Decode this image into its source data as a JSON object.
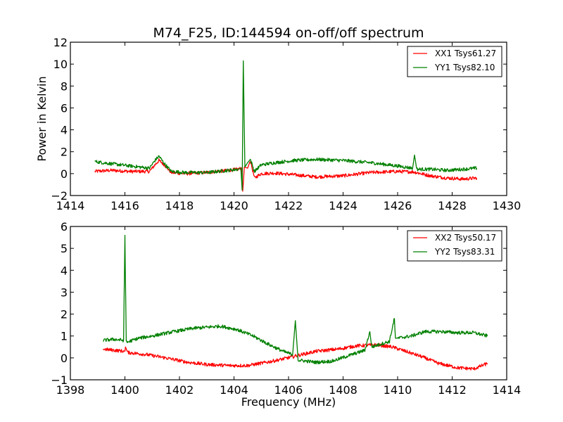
{
  "chart_data": [
    {
      "type": "line",
      "title": "M74_F25, ID:144594 on-off/off spectrum",
      "xlabel": "",
      "ylabel": "Power in Kelvin",
      "xlim": [
        1414,
        1430
      ],
      "ylim": [
        -2,
        12
      ],
      "xticks": [
        1414,
        1416,
        1418,
        1420,
        1422,
        1424,
        1426,
        1428,
        1430
      ],
      "yticks": [
        -2,
        0,
        2,
        4,
        6,
        8,
        10,
        12
      ],
      "grid": false,
      "legend_position": "top-right",
      "series": [
        {
          "name": "XX1 Tsys61.27",
          "color": "#ff0000",
          "x": [
            1414.9,
            1415.5,
            1416.2,
            1416.9,
            1417.1,
            1417.25,
            1417.45,
            1417.7,
            1418.2,
            1419.0,
            1419.8,
            1420.15,
            1420.28,
            1420.32,
            1420.38,
            1420.5,
            1420.6,
            1420.75,
            1421.0,
            1421.5,
            1422.2,
            1423.0,
            1424.0,
            1425.0,
            1426.0,
            1426.6,
            1427.2,
            1427.8,
            1428.4,
            1428.9
          ],
          "y": [
            0.2,
            0.3,
            0.2,
            0.2,
            0.8,
            1.2,
            0.8,
            0.1,
            0.0,
            0.1,
            0.3,
            0.4,
            0.5,
            -1.6,
            0.6,
            0.5,
            1.2,
            -0.4,
            0.0,
            0.05,
            -0.1,
            -0.3,
            -0.2,
            0.1,
            0.2,
            0.15,
            -0.2,
            -0.4,
            -0.5,
            -0.4
          ]
        },
        {
          "name": "YY1 Tsys82.10",
          "color": "#008000",
          "x": [
            1414.9,
            1415.5,
            1416.2,
            1416.9,
            1417.1,
            1417.25,
            1417.45,
            1417.7,
            1418.2,
            1419.0,
            1419.8,
            1420.15,
            1420.25,
            1420.3,
            1420.34,
            1420.4,
            1420.5,
            1420.6,
            1420.75,
            1421.0,
            1421.5,
            1422.2,
            1423.0,
            1424.0,
            1425.0,
            1426.0,
            1426.55,
            1426.62,
            1426.7,
            1427.2,
            1427.8,
            1428.4,
            1428.9
          ],
          "y": [
            1.1,
            0.9,
            0.7,
            0.5,
            1.2,
            1.6,
            0.9,
            0.2,
            0.1,
            0.1,
            0.3,
            0.4,
            0.5,
            -1.5,
            10.3,
            0.6,
            1.0,
            1.3,
            0.2,
            0.8,
            1.0,
            1.2,
            1.3,
            1.2,
            1.0,
            0.7,
            0.5,
            1.7,
            0.4,
            0.4,
            0.3,
            0.4,
            0.5
          ]
        }
      ]
    },
    {
      "type": "line",
      "title": "",
      "xlabel": "Frequency (MHz)",
      "ylabel": "",
      "xlim": [
        1398,
        1414
      ],
      "ylim": [
        -1,
        6
      ],
      "xticks": [
        1398,
        1400,
        1402,
        1404,
        1406,
        1408,
        1410,
        1412,
        1414
      ],
      "yticks": [
        -1,
        0,
        1,
        2,
        3,
        4,
        5,
        6
      ],
      "grid": false,
      "legend_position": "top-right",
      "series": [
        {
          "name": "XX2 Tsys50.17",
          "color": "#ff0000",
          "x": [
            1399.2,
            1399.6,
            1400.0,
            1400.02,
            1400.1,
            1400.8,
            1401.5,
            1402.3,
            1403.0,
            1403.8,
            1404.5,
            1405.2,
            1405.8,
            1406.3,
            1407.0,
            1407.8,
            1408.5,
            1409.2,
            1409.8,
            1410.3,
            1410.9,
            1411.5,
            1412.2,
            1412.8,
            1413.3
          ],
          "y": [
            0.4,
            0.35,
            0.3,
            0.5,
            0.25,
            0.15,
            0.0,
            -0.2,
            -0.3,
            -0.35,
            -0.35,
            -0.2,
            -0.05,
            0.1,
            0.3,
            0.4,
            0.55,
            0.6,
            0.5,
            0.3,
            0.05,
            -0.25,
            -0.45,
            -0.5,
            -0.25
          ]
        },
        {
          "name": "YY2 Tsys83.31",
          "color": "#008000",
          "x": [
            1399.2,
            1399.6,
            1399.95,
            1400.0,
            1400.05,
            1400.5,
            1401.0,
            1401.8,
            1402.5,
            1403.0,
            1403.5,
            1404.1,
            1404.7,
            1405.3,
            1405.8,
            1406.15,
            1406.25,
            1406.35,
            1407.0,
            1407.6,
            1408.2,
            1408.8,
            1408.98,
            1409.05,
            1409.3,
            1409.7,
            1409.88,
            1409.92,
            1410.0,
            1410.5,
            1411.0,
            1411.6,
            1412.2,
            1412.8,
            1413.3
          ],
          "y": [
            0.8,
            0.85,
            0.8,
            5.6,
            0.7,
            0.9,
            1.0,
            1.2,
            1.35,
            1.4,
            1.45,
            1.3,
            1.0,
            0.6,
            0.3,
            0.15,
            1.7,
            -0.1,
            -0.2,
            -0.15,
            0.1,
            0.35,
            1.2,
            0.5,
            0.6,
            0.75,
            1.8,
            0.9,
            0.9,
            1.0,
            1.2,
            1.2,
            1.15,
            1.15,
            1.0
          ]
        }
      ]
    }
  ]
}
